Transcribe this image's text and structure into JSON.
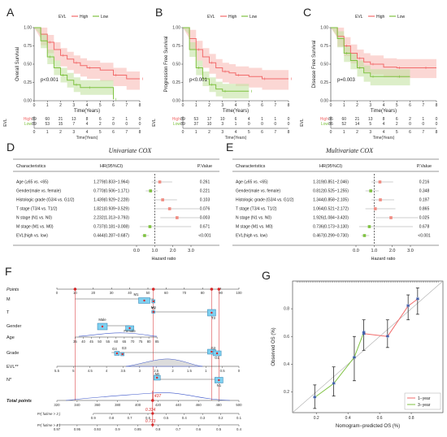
{
  "colors": {
    "high": "#f26b6b",
    "high_band": "#f7b7b0",
    "low": "#7fc241",
    "low_band": "#c5e3a3",
    "forest_high": "#f08a80",
    "forest_low": "#7fc241",
    "nomo_box": "#7fd0f0",
    "red": "#d62728",
    "calib_blue": "#3a5aa8"
  },
  "km_panels": [
    {
      "letter": "A",
      "ylabel": "Overall Survival",
      "pvalue": "p<0.001",
      "legend_title": "EVL",
      "legend_items": [
        "High",
        "Low"
      ],
      "xlabel": "Time(Years)",
      "xticks": [
        "0",
        "1",
        "2",
        "3",
        "4",
        "5",
        "6",
        "7",
        "8"
      ],
      "yticks": [
        "0.00",
        "0.25",
        "0.50",
        "0.75",
        "1.00"
      ],
      "risk_title": "EVL",
      "risk_high": [
        "89",
        "60",
        "21",
        "13",
        "8",
        "6",
        "2",
        "1",
        "0"
      ],
      "risk_low": [
        "89",
        "53",
        "15",
        "7",
        "4",
        "2",
        "0",
        "0",
        "0"
      ],
      "risk_row_labels": [
        "High",
        "Low"
      ],
      "high_curve": [
        [
          0,
          1.0
        ],
        [
          0.5,
          0.91
        ],
        [
          1,
          0.8
        ],
        [
          1.5,
          0.7
        ],
        [
          2,
          0.62
        ],
        [
          2.5,
          0.57
        ],
        [
          3,
          0.52
        ],
        [
          3.5,
          0.48
        ],
        [
          4,
          0.45
        ],
        [
          5,
          0.42
        ],
        [
          6,
          0.35
        ],
        [
          7,
          0.3
        ],
        [
          8,
          0.3
        ]
      ],
      "low_curve": [
        [
          0,
          1.0
        ],
        [
          0.5,
          0.82
        ],
        [
          1,
          0.6
        ],
        [
          1.5,
          0.45
        ],
        [
          2,
          0.35
        ],
        [
          2.5,
          0.28
        ],
        [
          3,
          0.22
        ],
        [
          3.5,
          0.18
        ],
        [
          4,
          0.18
        ],
        [
          5,
          0.18
        ],
        [
          6,
          0.02
        ]
      ],
      "high_band": [
        0.1,
        0.15
      ],
      "low_band": [
        0.1,
        0.1
      ]
    },
    {
      "letter": "B",
      "ylabel": "Progression Free Survival",
      "pvalue": "p<0.001",
      "legend_title": "EVL",
      "legend_items": [
        "High",
        "Low"
      ],
      "xlabel": "Time(Years)",
      "xticks": [
        "0",
        "1",
        "2",
        "3",
        "4",
        "5",
        "6",
        "7",
        "8"
      ],
      "yticks": [
        "0.00",
        "0.25",
        "0.50",
        "0.75",
        "1.00"
      ],
      "risk_title": "EVL",
      "risk_high": [
        "89",
        "53",
        "17",
        "10",
        "6",
        "4",
        "1",
        "1",
        "0"
      ],
      "risk_low": [
        "89",
        "37",
        "10",
        "3",
        "1",
        "0",
        "0",
        "0",
        "0"
      ],
      "risk_row_labels": [
        "High",
        "Low"
      ],
      "high_curve": [
        [
          0,
          1.0
        ],
        [
          0.5,
          0.85
        ],
        [
          1,
          0.7
        ],
        [
          1.5,
          0.6
        ],
        [
          2,
          0.52
        ],
        [
          2.5,
          0.45
        ],
        [
          3,
          0.4
        ],
        [
          3.5,
          0.38
        ],
        [
          4,
          0.35
        ],
        [
          5,
          0.33
        ],
        [
          6,
          0.3
        ],
        [
          7,
          0.3
        ],
        [
          8,
          0.3
        ]
      ],
      "low_curve": [
        [
          0,
          1.0
        ],
        [
          0.5,
          0.7
        ],
        [
          1,
          0.45
        ],
        [
          1.5,
          0.3
        ],
        [
          2,
          0.22
        ],
        [
          2.5,
          0.16
        ],
        [
          3,
          0.13
        ],
        [
          4,
          0.13
        ],
        [
          5,
          0.13
        ]
      ],
      "high_band": [
        0.12,
        0.15
      ],
      "low_band": [
        0.1,
        0.1
      ]
    },
    {
      "letter": "C",
      "ylabel": "Disease Free Survival",
      "pvalue": "p=0.003",
      "legend_title": "EVL",
      "legend_items": [
        "High",
        "Low"
      ],
      "xlabel": "Time(Years)",
      "xticks": [
        "0",
        "1",
        "2",
        "3",
        "4",
        "5",
        "6",
        "7",
        "8"
      ],
      "yticks": [
        "0.00",
        "0.25",
        "0.50",
        "0.75",
        "1.00"
      ],
      "risk_title": "EVL",
      "risk_high": [
        "86",
        "60",
        "21",
        "13",
        "8",
        "6",
        "2",
        "1",
        "0"
      ],
      "risk_low": [
        "86",
        "52",
        "14",
        "5",
        "4",
        "2",
        "0",
        "0",
        "0"
      ],
      "risk_row_labels": [
        "High",
        "Low"
      ],
      "high_curve": [
        [
          0,
          1.0
        ],
        [
          0.5,
          0.88
        ],
        [
          1,
          0.75
        ],
        [
          1.5,
          0.65
        ],
        [
          2,
          0.58
        ],
        [
          2.5,
          0.53
        ],
        [
          3,
          0.5
        ],
        [
          4,
          0.46
        ],
        [
          5,
          0.45
        ],
        [
          6,
          0.45
        ],
        [
          7,
          0.45
        ],
        [
          8,
          0.45
        ]
      ],
      "low_curve": [
        [
          0,
          1.0
        ],
        [
          0.5,
          0.85
        ],
        [
          1,
          0.65
        ],
        [
          1.5,
          0.55
        ],
        [
          2,
          0.45
        ],
        [
          2.5,
          0.38
        ],
        [
          3,
          0.33
        ],
        [
          4,
          0.33
        ],
        [
          5,
          0.33
        ],
        [
          6,
          0.33
        ]
      ],
      "high_band": [
        0.12,
        0.14
      ],
      "low_band": [
        0.1,
        0.12
      ]
    }
  ],
  "cox_panels": [
    {
      "letter": "D",
      "title": "Univariate COX",
      "headers": [
        "Characteristics",
        "HR(95%CI)",
        "P.Value"
      ],
      "xlabel": "Hazard ratio",
      "xticks": [
        "0.0",
        "1.0",
        "2.0",
        "3.0"
      ],
      "rows": [
        {
          "label": "Age (≥65 vs. <65)",
          "ci_text": "1.279(0.833~1.964)",
          "p": "0.261",
          "hr": 1.279,
          "lo": 0.833,
          "hi": 1.964
        },
        {
          "label": "Gender(male vs. female)",
          "ci_text": "0.770(0.506~1.171)",
          "p": "0.221",
          "hr": 0.77,
          "lo": 0.506,
          "hi": 1.171
        },
        {
          "label": "Histologic grade (G3/4 vs. G1/2)",
          "ci_text": "1.439(0.929~2.228)",
          "p": "0.103",
          "hr": 1.439,
          "lo": 0.929,
          "hi": 2.228
        },
        {
          "label": "T stage (T3/4 vs. T1/2)",
          "ci_text": "1.821(0.939~3.529)",
          "p": "0.076",
          "hr": 1.821,
          "lo": 0.939,
          "hi": 3.529
        },
        {
          "label": "N stage (N1 vs. N0)",
          "ci_text": "2.232(1.313~3.793)",
          "p": "0.003",
          "hr": 2.232,
          "lo": 1.313,
          "hi": 3.793
        },
        {
          "label": "M stage (M1 vs. M0)",
          "ci_text": "0.737(0.181~3.008)",
          "p": "0.671",
          "hr": 0.737,
          "lo": 0.181,
          "hi": 3.008
        },
        {
          "label": "EVL(high vs. low)",
          "ci_text": "0.444(0.287~0.687)",
          "p": "<0.001",
          "hr": 0.444,
          "lo": 0.287,
          "hi": 0.687
        }
      ]
    },
    {
      "letter": "E",
      "title": "Multivariate COX",
      "headers": [
        "Characteristics",
        "HR(95%CI)",
        "P.Value"
      ],
      "xlabel": "Hazard ratio",
      "xticks": [
        "0.0",
        "1.0",
        "2.0",
        "3.0"
      ],
      "rows": [
        {
          "label": "Age (≥65 vs. <65)",
          "ci_text": "1.319(0.851~2.046)",
          "p": "0.216",
          "hr": 1.319,
          "lo": 0.851,
          "hi": 2.046
        },
        {
          "label": "Gender(male vs. female)",
          "ci_text": "0.812(0.525~1.255)",
          "p": "0.348",
          "hr": 0.812,
          "lo": 0.525,
          "hi": 1.255
        },
        {
          "label": "Histologic grade (G3/4 vs. G1/2)",
          "ci_text": "1.344(0.858~2.105)",
          "p": "0.197",
          "hr": 1.344,
          "lo": 0.858,
          "hi": 2.105
        },
        {
          "label": "T stage (T3/4 vs. T1/2)",
          "ci_text": "1.064(0.521~2.172)",
          "p": "0.865",
          "hr": 1.064,
          "lo": 0.521,
          "hi": 2.172
        },
        {
          "label": "N stage (N1 vs. N0)",
          "ci_text": "1.926(1.084~3.420)",
          "p": "0.025",
          "hr": 1.926,
          "lo": 1.084,
          "hi": 3.42
        },
        {
          "label": "M stage (M1 vs. M0)",
          "ci_text": "0.736(0.173~3.130)",
          "p": "0.678",
          "hr": 0.736,
          "lo": 0.173,
          "hi": 3.13
        },
        {
          "label": "EVL(high vs. low)",
          "ci_text": "0.467(0.299~0.730)",
          "p": "<0.001",
          "hr": 0.467,
          "lo": 0.299,
          "hi": 0.73
        }
      ]
    }
  ],
  "nomogram": {
    "letter": "F",
    "points_label": "Points",
    "points_ticks": [
      "0",
      "10",
      "20",
      "30",
      "40",
      "50",
      "60",
      "70",
      "80",
      "90",
      "100"
    ],
    "rows": [
      {
        "label": "M",
        "cats": [
          "M1",
          "M0"
        ]
      },
      {
        "label": "T",
        "cats": [
          "T1",
          "T3"
        ]
      },
      {
        "label": "Gender",
        "cats": [
          "Male",
          "Female"
        ]
      },
      {
        "label": "Age",
        "ticks": [
          "35",
          "40",
          "45",
          "50",
          "55",
          "60",
          "65",
          "70",
          "75",
          "80",
          "85"
        ]
      },
      {
        "label": "Grade",
        "cats": [
          "G4",
          "G3",
          "G2",
          "G1"
        ]
      },
      {
        "label": "EVL**",
        "ticks": [
          "5.5",
          "5",
          "4.5",
          "4",
          "3.5",
          "3",
          "2.5",
          "2",
          "1.5",
          "1",
          "0.5",
          "0"
        ]
      },
      {
        "label": "N*",
        "cats": [
          "N0",
          "N1"
        ]
      }
    ],
    "total_label": "Total points",
    "total_ticks": [
      "320",
      "340",
      "360",
      "380",
      "400",
      "420",
      "440",
      "460",
      "480",
      "500"
    ],
    "total_value": "437",
    "prob_rows": [
      {
        "label": "Pr( futime > 3 )",
        "value": "0.334",
        "ticks": [
          "0.9",
          "0.8",
          "0.7",
          "0.6",
          "0.5",
          "0.4",
          "0.3",
          "0.2",
          "0.1"
        ]
      },
      {
        "label": "Pr( futime > 1 )",
        "value": "0.773",
        "ticks": [
          "0.97",
          "0.95",
          "0.93",
          "0.9",
          "0.85",
          "0.8",
          "0.7",
          "0.6",
          "0.5",
          "0.4"
        ]
      }
    ]
  },
  "calibration": {
    "letter": "G",
    "xlabel": "Nomogram−predicted OS (%)",
    "ylabel": "Observed OS (%)",
    "xticks": [
      "0.2",
      "0.4",
      "0.6",
      "0.8"
    ],
    "yticks": [
      "0.2",
      "0.4",
      "0.6",
      "0.8"
    ],
    "legend": [
      "1−year",
      "3−year"
    ],
    "year1": [
      [
        0.5,
        0.62
      ],
      [
        0.65,
        0.6
      ],
      [
        0.78,
        0.82
      ],
      [
        0.84,
        0.87
      ]
    ],
    "year3": [
      [
        0.19,
        0.16
      ],
      [
        0.31,
        0.26
      ],
      [
        0.44,
        0.45
      ],
      [
        0.5,
        0.63
      ]
    ],
    "errorbars": [
      [
        0.19,
        0.08,
        0.25
      ],
      [
        0.31,
        0.17,
        0.38
      ],
      [
        0.44,
        0.28,
        0.6
      ],
      [
        0.5,
        0.5,
        0.72
      ],
      [
        0.65,
        0.52,
        0.72
      ],
      [
        0.78,
        0.72,
        0.9
      ],
      [
        0.84,
        0.76,
        0.95
      ]
    ]
  }
}
